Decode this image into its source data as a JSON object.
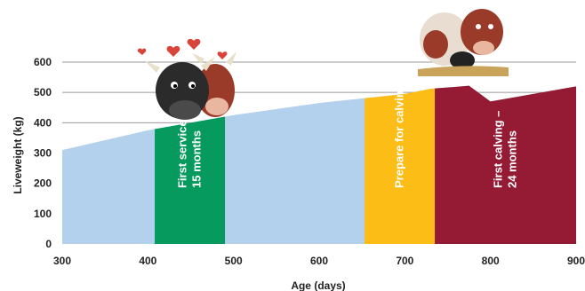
{
  "chart_data": {
    "type": "area",
    "xlabel": "Age (days)",
    "ylabel": "Liveweight (kg)",
    "xlim": [
      300,
      900
    ],
    "ylim": [
      0,
      600
    ],
    "xticks": [
      300,
      400,
      500,
      600,
      700,
      800,
      900
    ],
    "yticks": [
      0,
      100,
      200,
      300,
      400,
      500,
      600
    ],
    "grid": "horizontal lines above curve",
    "curve": {
      "x": [
        300,
        400,
        500,
        600,
        700,
        730,
        775,
        800,
        900
      ],
      "y": [
        310,
        375,
        425,
        465,
        495,
        512,
        522,
        470,
        520
      ]
    },
    "bands": [
      {
        "label_lines": [
          "First service –",
          "15 months"
        ],
        "x_start": 408,
        "x_end": 490,
        "color": "#069a5e"
      },
      {
        "label_lines": [
          "Prepare for calving"
        ],
        "x_start": 653,
        "x_end": 735,
        "color": "#fcbd16"
      },
      {
        "label_lines": [
          "First calving –",
          "24 months"
        ],
        "x_start": 735,
        "x_end": 900,
        "color": "#951b34"
      }
    ],
    "colors": {
      "area": "#b3d0ec",
      "grid": "#9a9a9a",
      "hearts": "#d8433a"
    },
    "illustrations": [
      "cows-with-hearts-cartoon",
      "cows-with-calf-cartoon"
    ]
  }
}
